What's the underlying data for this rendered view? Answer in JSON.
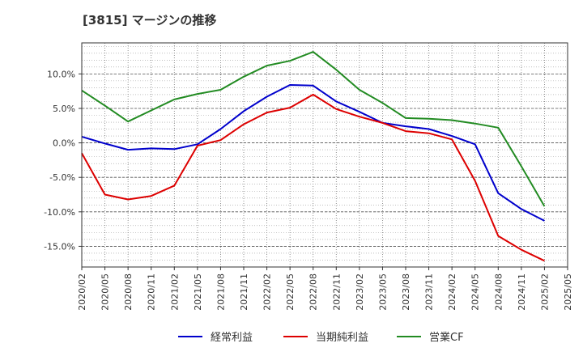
{
  "chart_data": {
    "type": "line",
    "title": "[3815]  マージンの推移",
    "x": [
      "2020/02",
      "2020/05",
      "2020/08",
      "2020/11",
      "2021/02",
      "2021/05",
      "2021/08",
      "2021/11",
      "2022/02",
      "2022/05",
      "2022/08",
      "2022/11",
      "2023/02",
      "2023/05",
      "2023/08",
      "2023/11",
      "2024/02",
      "2024/05",
      "2024/08",
      "2024/11",
      "2025/02"
    ],
    "x_tick_labels": [
      "2020/02",
      "2020/05",
      "2020/08",
      "2020/11",
      "2021/02",
      "2021/05",
      "2021/08",
      "2021/11",
      "2022/02",
      "2022/05",
      "2022/08",
      "2022/11",
      "2023/02",
      "2023/05",
      "2023/08",
      "2023/11",
      "2024/02",
      "2024/05",
      "2024/08",
      "2024/11",
      "2025/02",
      "2025/05"
    ],
    "y_ticks": [
      10,
      5,
      0,
      -5,
      -10,
      -15
    ],
    "y_tick_labels": [
      "10.0%",
      "5.0%",
      "0.0%",
      "-5.0%",
      "-10.0%",
      "-15.0%"
    ],
    "ylim": [
      -18.0,
      14.5
    ],
    "xlabel": "",
    "ylabel": "",
    "grid": true,
    "legend_position": "bottom",
    "series": [
      {
        "name": "経常利益",
        "color": "#0000cc",
        "values": [
          0.9,
          -0.1,
          -1.0,
          -0.8,
          -0.9,
          -0.2,
          2.0,
          4.6,
          6.7,
          8.4,
          8.3,
          6.0,
          4.5,
          2.9,
          2.4,
          2.0,
          1.0,
          -0.2,
          -7.3,
          -9.6,
          -11.3
        ]
      },
      {
        "name": "当期純利益",
        "color": "#dd0000",
        "values": [
          -1.5,
          -7.5,
          -8.2,
          -7.7,
          -6.2,
          -0.4,
          0.4,
          2.7,
          4.4,
          5.1,
          7.0,
          4.9,
          3.8,
          2.9,
          1.7,
          1.4,
          0.5,
          -5.5,
          -13.5,
          -15.5,
          -17.1
        ]
      },
      {
        "name": "営業CF",
        "color": "#228b22",
        "values": [
          7.6,
          5.4,
          3.1,
          4.7,
          6.3,
          7.1,
          7.7,
          9.6,
          11.2,
          11.9,
          13.2,
          10.6,
          7.7,
          5.8,
          3.6,
          3.5,
          3.3,
          2.8,
          2.2,
          -3.4,
          -9.2
        ]
      }
    ]
  }
}
